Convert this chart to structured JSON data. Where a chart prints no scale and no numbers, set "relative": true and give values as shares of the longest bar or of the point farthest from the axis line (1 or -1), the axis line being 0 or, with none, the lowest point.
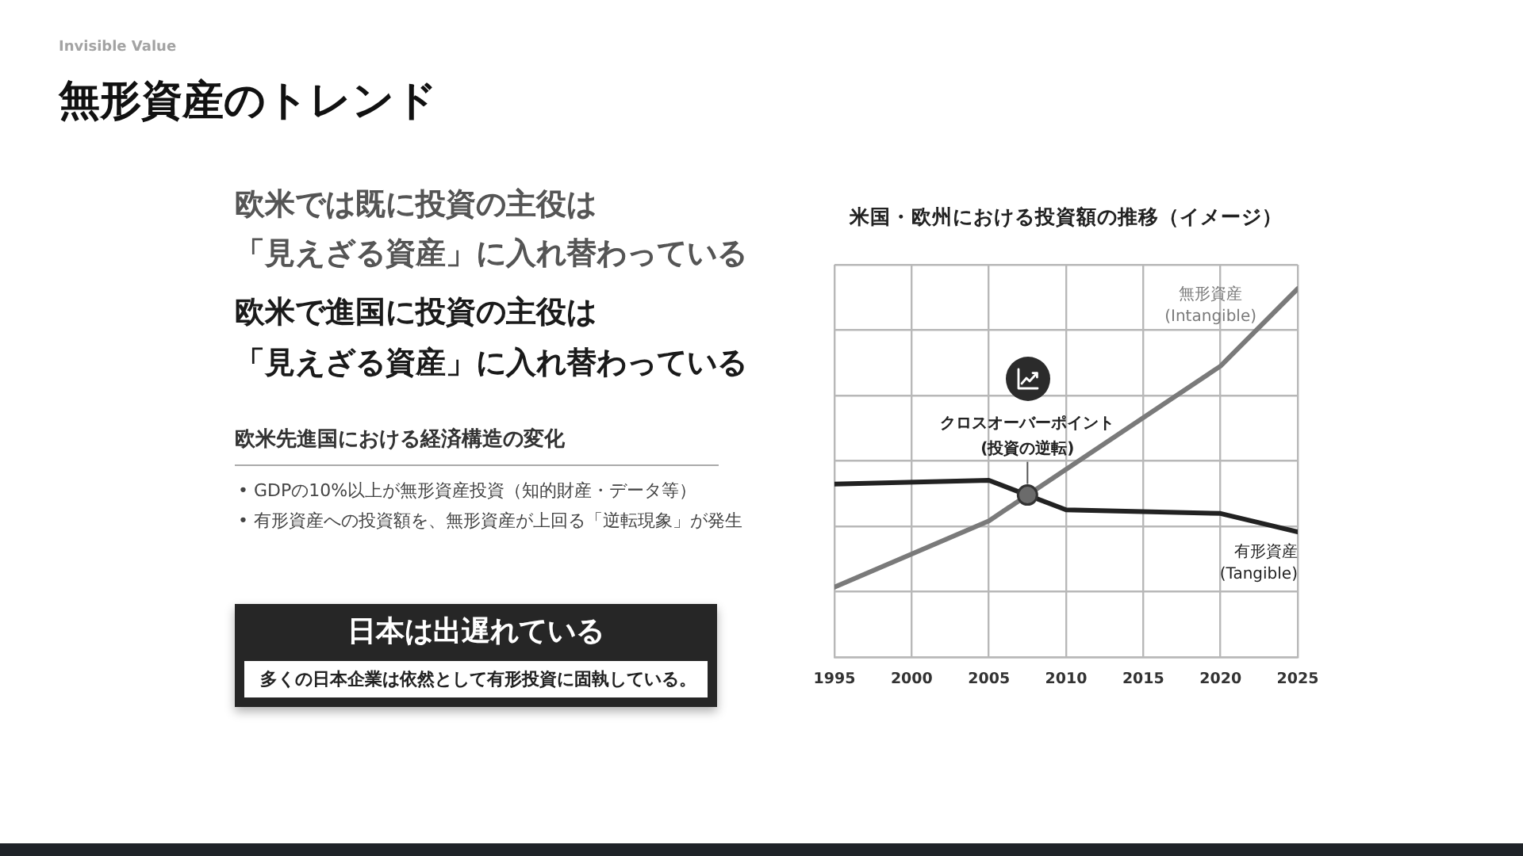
{
  "chart_data": [
    {
      "type": "other",
      "title": "無形資産のトレンド",
      "subtitle": "Invisible Value",
      "annotations": [
        "欧米では既に投資の主役は",
        "「見えざる資産」に入れ替わっている",
        "欧米で進国に投資の主役は",
        "「見えざる資産」に入れ替わっている",
        "欧米先進国における経済構造の変化",
        "• GDPの10%以上が無形資産投資（知的財産・データ等）",
        "• 有形資産への投資額を、無形資産が上回る「逆転現象」が発生",
        "日本は出遅れている",
        "多くの日本企業は依然として有形投資に固執している。"
      ]
    },
    {
      "type": "line",
      "title": "米国・欧州における投資額の推移（イメージ）",
      "relative": true,
      "xlim": [
        1995,
        2025
      ],
      "xticks": [
        1995,
        2000,
        2005,
        2010,
        2015,
        2020,
        2025
      ],
      "grid": true,
      "line_style": "solid",
      "series": [
        {
          "name": "無形資産 (Intangible)",
          "color": "#7a7a7a",
          "x": [
            1995,
            2005,
            2020,
            2025
          ],
          "values": [
            0.19,
            0.37,
            0.79,
            1
          ]
        },
        {
          "name": "有形資産 (Tangible)",
          "color": "#222222",
          "x": [
            1995,
            2005,
            2010,
            2020,
            2025
          ],
          "values": [
            0.47,
            0.48,
            0.4,
            0.39,
            0.34
          ]
        }
      ],
      "annotations": [
        {
          "text": "クロスオーバーポイント (投資の逆転)",
          "x": 2007.5,
          "y": 0.44
        }
      ]
    }
  ]
}
